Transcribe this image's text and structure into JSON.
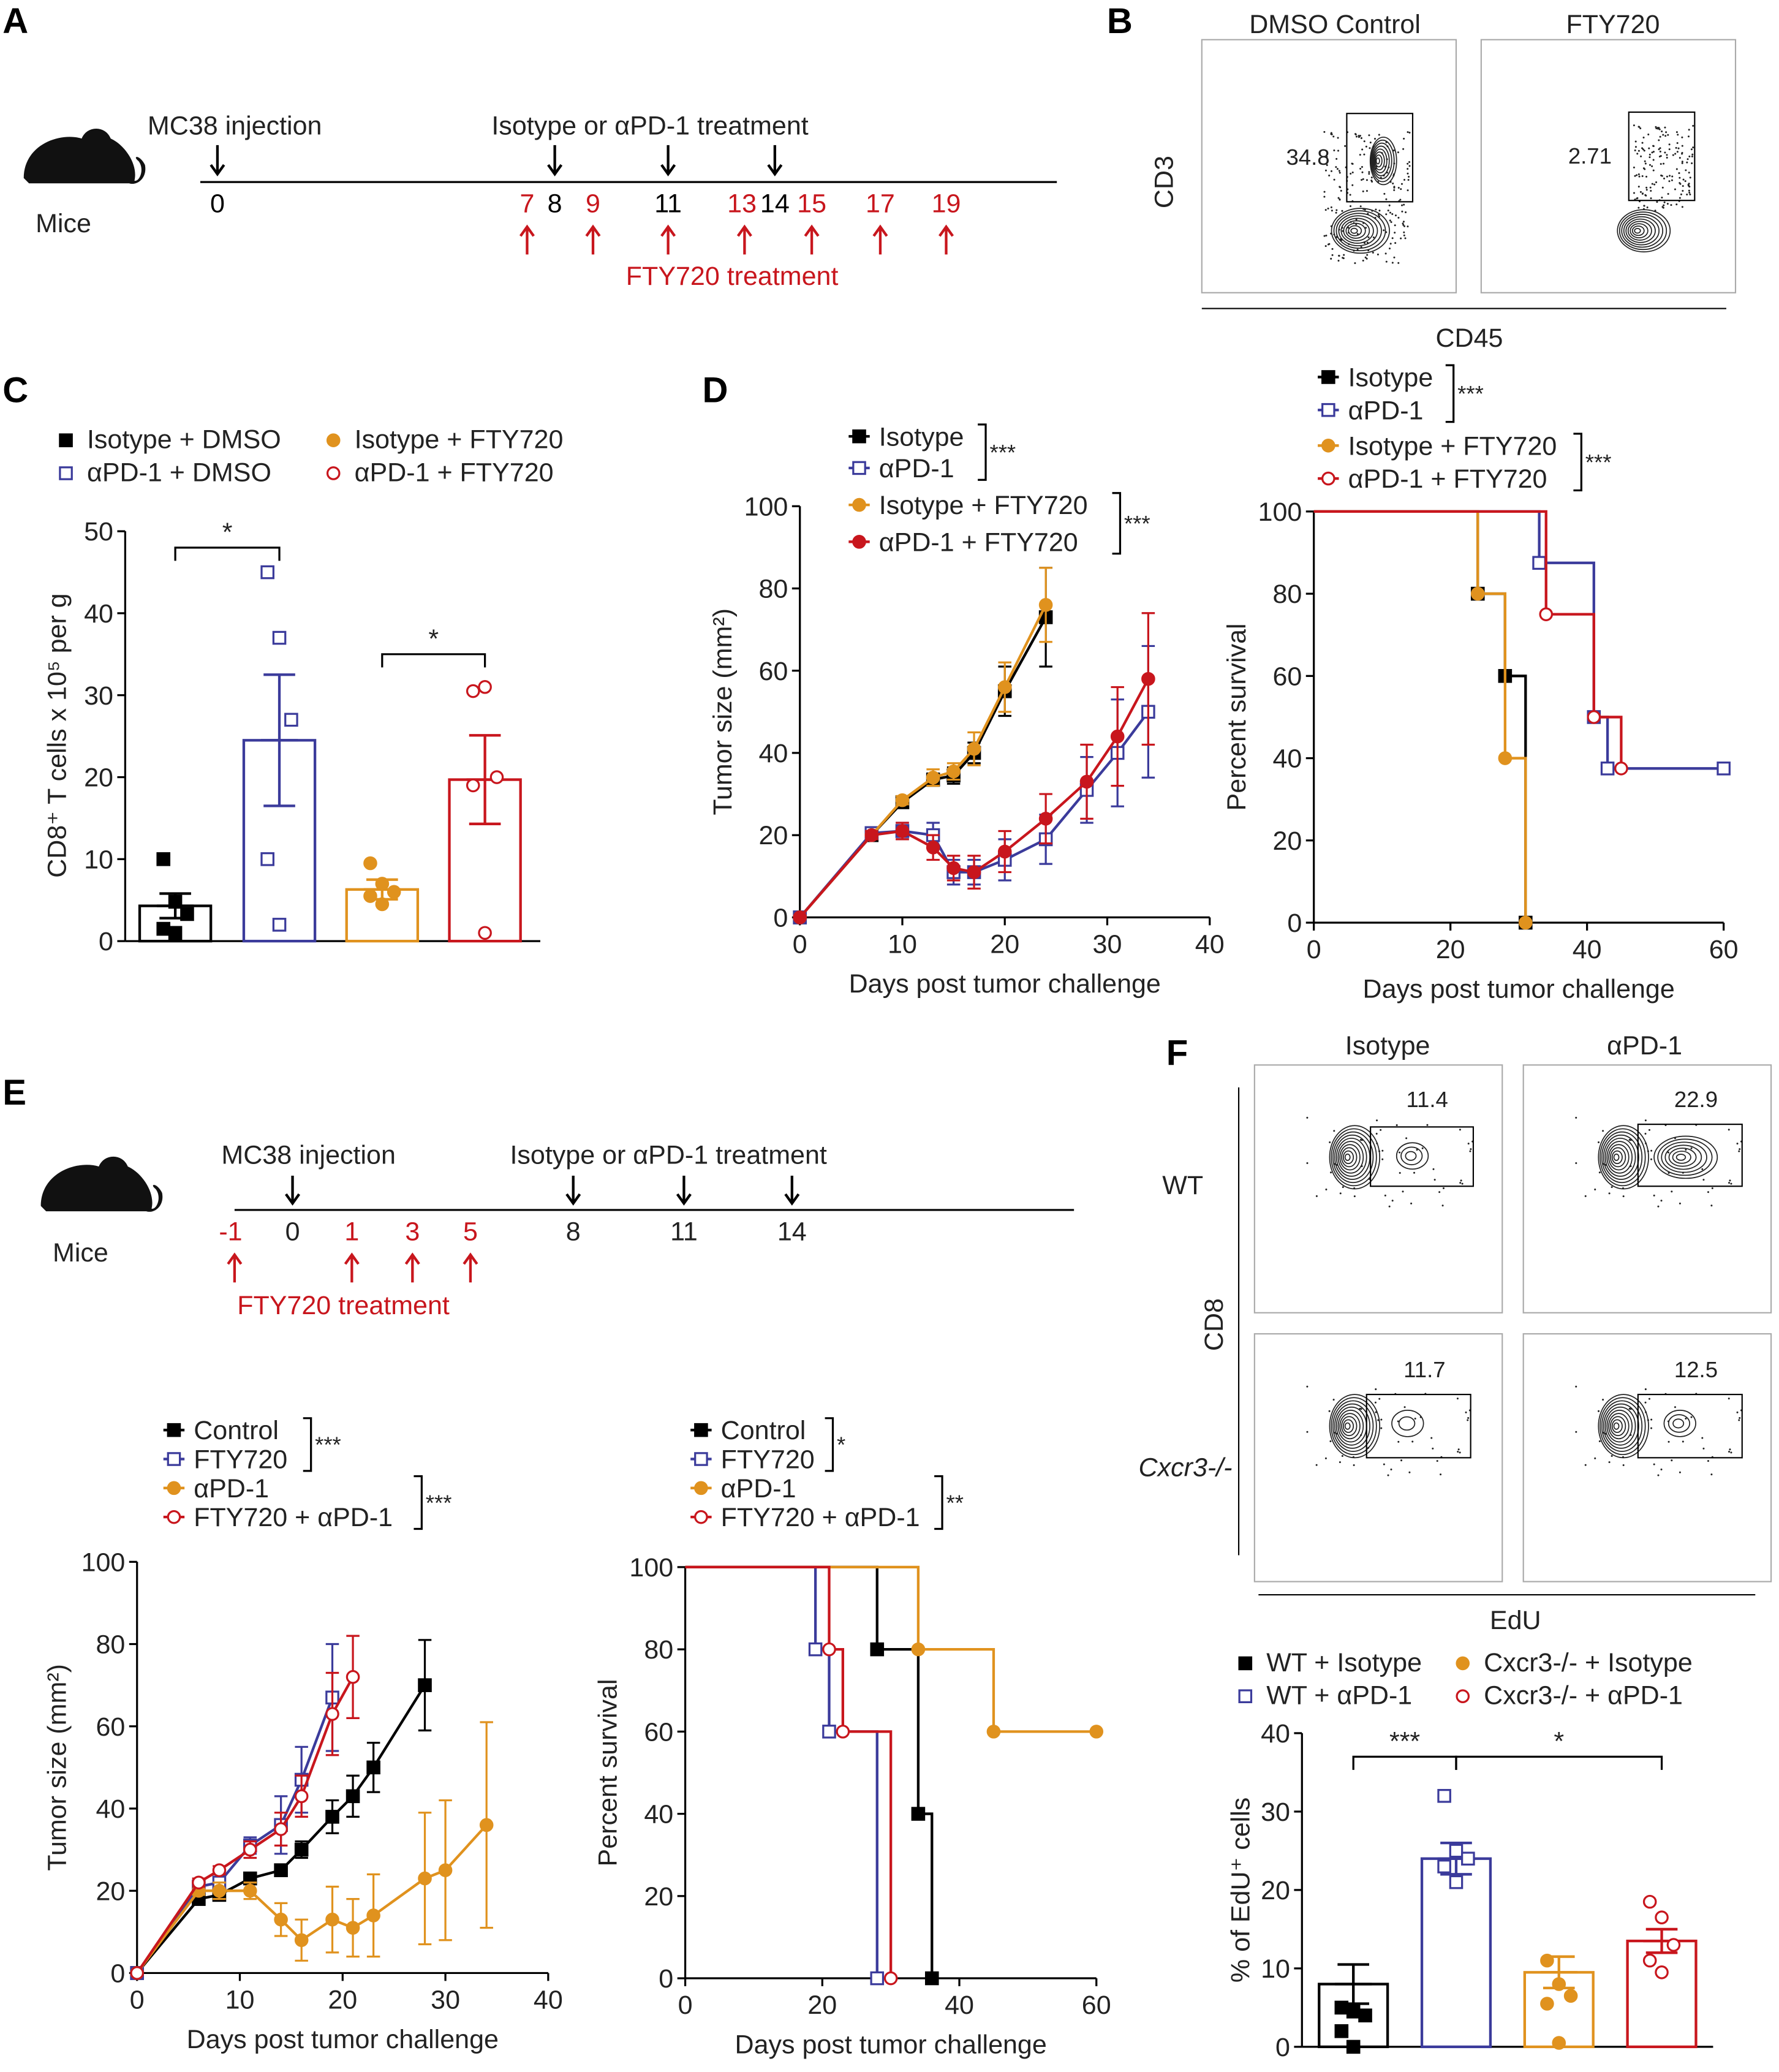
{
  "panels": {
    "a": "A",
    "b": "B",
    "c": "C",
    "d": "D",
    "e": "E",
    "f": "F"
  },
  "timeline_a": {
    "mice_label": "Mice",
    "injection_label": "MC38 injection",
    "treatment_label": "Isotype or αPD-1 treatment",
    "fty_label": "FTY720 treatment",
    "days": [
      {
        "label": "0",
        "color": "#000"
      },
      {
        "label": "7",
        "color": "#c8161d"
      },
      {
        "label": "8",
        "color": "#000"
      },
      {
        "label": "9",
        "color": "#c8161d"
      },
      {
        "label": "11",
        "color": "#000"
      },
      {
        "label": "13",
        "color": "#c8161d"
      },
      {
        "label": "14",
        "color": "#000"
      },
      {
        "label": "15",
        "color": "#c8161d"
      },
      {
        "label": "17",
        "color": "#c8161d"
      },
      {
        "label": "19",
        "color": "#c8161d"
      }
    ]
  },
  "timeline_e": {
    "mice_label": "Mice",
    "injection_label": "MC38 injection",
    "treatment_label": "Isotype or αPD-1 treatment",
    "fty_label": "FTY720 treatment",
    "days": [
      {
        "label": "-1"
      },
      {
        "label": "0"
      },
      {
        "label": "1"
      },
      {
        "label": "3"
      },
      {
        "label": "5"
      },
      {
        "label": "8"
      },
      {
        "label": "11"
      },
      {
        "label": "14"
      }
    ]
  },
  "flow_b": {
    "titles": [
      "DMSO Control",
      "FTY720"
    ],
    "y_axis": "CD3",
    "x_axis": "CD45",
    "gate_values": [
      "34.8",
      "2.71"
    ]
  },
  "flow_f": {
    "col_titles": [
      "Isotype",
      "αPD-1"
    ],
    "row_labels": [
      "WT",
      "Cxcr3-/-"
    ],
    "y_axis": "CD8",
    "x_axis": "EdU",
    "gate_values": [
      "11.4",
      "22.9",
      "11.7",
      "12.5"
    ]
  },
  "colors": {
    "black": "#000000",
    "blue": "#3b3b9b",
    "orange": "#e0921e",
    "red": "#c8161d"
  },
  "chart_data": [
    {
      "id": "C",
      "type": "bar",
      "title": "",
      "xlabel": "",
      "ylabel": "CD8⁺ T cells x 10⁵ per g",
      "ylim": [
        0,
        50
      ],
      "yticks": [
        0,
        10,
        20,
        30,
        40,
        50
      ],
      "categories": [
        "Isotype + DMSO",
        "αPD-1 + DMSO",
        "Isotype + FTY720",
        "αPD-1 + FTY720"
      ],
      "values": [
        4.3,
        24.5,
        6.3,
        19.7
      ],
      "sem": [
        1.5,
        8,
        1.2,
        5.4
      ],
      "points": [
        [
          10,
          4.8,
          3.3,
          1.5,
          1
        ],
        [
          45,
          37,
          27,
          10,
          2
        ],
        [
          9.5,
          7,
          6,
          5.5,
          4.5
        ],
        [
          30.5,
          31,
          20,
          19,
          1
        ]
      ],
      "markers": [
        "square-filled",
        "square-open",
        "circle-filled",
        "circle-open"
      ],
      "colors": [
        "#000000",
        "#3b3b9b",
        "#e0921e",
        "#c8161d"
      ],
      "significance": [
        {
          "from": 0,
          "to": 1,
          "label": "*",
          "y": 48
        },
        {
          "from": 2,
          "to": 3,
          "label": "*",
          "y": 35
        }
      ]
    },
    {
      "id": "D-growth",
      "type": "line",
      "xlabel": "Days post tumor challenge",
      "ylabel": "Tumor size (mm²)",
      "xlim": [
        0,
        40
      ],
      "ylim": [
        0,
        100
      ],
      "xticks": [
        0,
        10,
        20,
        30,
        40
      ],
      "yticks": [
        0,
        20,
        40,
        60,
        80,
        100
      ],
      "series": [
        {
          "name": "Isotype",
          "color": "#000000",
          "marker": "square-filled",
          "x": [
            0,
            7,
            10,
            13,
            15,
            17,
            20,
            24
          ],
          "y": [
            0,
            20,
            28,
            33.5,
            34.5,
            40,
            55,
            73
          ],
          "err": [
            0,
            1,
            1,
            1.5,
            2,
            2.5,
            6,
            12
          ]
        },
        {
          "name": "αPD-1",
          "color": "#3b3b9b",
          "marker": "square-open",
          "x": [
            0,
            7,
            10,
            13,
            15,
            17,
            20,
            24,
            28,
            31,
            34
          ],
          "y": [
            0,
            20.5,
            21,
            20,
            11,
            11,
            14,
            19,
            31,
            40,
            50
          ],
          "err": [
            0,
            1,
            2,
            3,
            3,
            3,
            5,
            6,
            8,
            13,
            16
          ]
        },
        {
          "name": "Isotype + FTY720",
          "color": "#e0921e",
          "marker": "circle-filled",
          "x": [
            0,
            7,
            10,
            13,
            15,
            17,
            20,
            24
          ],
          "y": [
            0,
            20,
            28.5,
            34,
            35.5,
            41,
            56,
            76
          ],
          "err": [
            0,
            1,
            1,
            2,
            2,
            4,
            6,
            9
          ]
        },
        {
          "name": "αPD-1 + FTY720",
          "color": "#c8161d",
          "marker": "circle-filled",
          "x": [
            0,
            7,
            10,
            13,
            15,
            17,
            20,
            24,
            28,
            31,
            34
          ],
          "y": [
            0,
            20,
            21,
            17,
            12,
            11,
            16,
            24,
            33,
            44,
            58
          ],
          "err": [
            0,
            1,
            2,
            3,
            3,
            4,
            5,
            6,
            9,
            12,
            16
          ]
        }
      ],
      "brackets": [
        {
          "items": [
            0,
            1
          ],
          "label": "***"
        },
        {
          "items": [
            2,
            3
          ],
          "label": "***"
        }
      ]
    },
    {
      "id": "D-survival",
      "type": "line",
      "xlabel": "Days post tumor challenge",
      "ylabel": "Percent survival",
      "xlim": [
        0,
        60
      ],
      "ylim": [
        0,
        100
      ],
      "xticks": [
        0,
        20,
        40,
        60
      ],
      "yticks": [
        0,
        20,
        40,
        60,
        80,
        100
      ],
      "series": [
        {
          "name": "Isotype",
          "color": "#000000",
          "marker": "square-filled",
          "steps": [
            [
              24,
              80
            ],
            [
              28,
              60
            ],
            [
              31,
              0
            ]
          ],
          "end": 31
        },
        {
          "name": "αPD-1",
          "color": "#3b3b9b",
          "marker": "square-open",
          "steps": [
            [
              33,
              87.5
            ],
            [
              41,
              50
            ],
            [
              43,
              37.5
            ]
          ],
          "end": 60
        },
        {
          "name": "Isotype + FTY720",
          "color": "#e0921e",
          "marker": "circle-filled",
          "steps": [
            [
              24,
              80
            ],
            [
              28,
              40
            ],
            [
              31,
              0
            ]
          ],
          "end": 31
        },
        {
          "name": "αPD-1 + FTY720",
          "color": "#c8161d",
          "marker": "circle-open",
          "steps": [
            [
              34,
              75
            ],
            [
              41,
              50
            ],
            [
              45,
              37.5
            ]
          ],
          "end": 45
        }
      ],
      "brackets": [
        {
          "items": [
            0,
            1
          ],
          "label": "***"
        },
        {
          "items": [
            2,
            3
          ],
          "label": "***"
        }
      ]
    },
    {
      "id": "E-growth",
      "type": "line",
      "xlabel": "Days post tumor challenge",
      "ylabel": "Tumor size (mm²)",
      "xlim": [
        0,
        40
      ],
      "ylim": [
        0,
        100
      ],
      "xticks": [
        0,
        10,
        20,
        30,
        40
      ],
      "yticks": [
        0,
        20,
        40,
        60,
        80,
        100
      ],
      "series": [
        {
          "name": "Control",
          "color": "#000000",
          "marker": "square-filled",
          "x": [
            0,
            6,
            8,
            11,
            14,
            16,
            19,
            21,
            23,
            28
          ],
          "y": [
            0,
            18,
            19,
            23,
            25,
            30,
            38,
            43,
            50,
            70
          ],
          "err": [
            0,
            1,
            1,
            1,
            1,
            2,
            4,
            5,
            6,
            11
          ]
        },
        {
          "name": "FTY720",
          "color": "#3b3b9b",
          "marker": "square-open",
          "x": [
            0,
            6,
            8,
            11,
            14,
            16,
            19
          ],
          "y": [
            0,
            21,
            22,
            31,
            36,
            47,
            67
          ],
          "err": [
            0,
            1,
            1,
            2,
            7,
            8,
            13
          ]
        },
        {
          "name": "αPD-1",
          "color": "#e0921e",
          "marker": "circle-filled",
          "x": [
            0,
            6,
            8,
            11,
            14,
            16,
            19,
            21,
            23,
            28,
            30,
            34
          ],
          "y": [
            0,
            20,
            20,
            20,
            13,
            8,
            13,
            11,
            14,
            23,
            25,
            36
          ],
          "err": [
            0,
            1,
            2,
            2,
            4,
            5,
            8,
            7,
            10,
            16,
            17,
            25
          ]
        },
        {
          "name": "FTY720 + αPD-1",
          "color": "#c8161d",
          "marker": "circle-open",
          "x": [
            0,
            6,
            8,
            11,
            14,
            16,
            19,
            21
          ],
          "y": [
            0,
            22,
            25,
            30,
            35,
            43,
            63,
            72
          ],
          "err": [
            0,
            1,
            1,
            2,
            4,
            5,
            10,
            10
          ]
        }
      ],
      "brackets": [
        {
          "items": [
            0,
            1
          ],
          "label": "***"
        },
        {
          "items": [
            2,
            3
          ],
          "label": "***"
        }
      ]
    },
    {
      "id": "E-survival",
      "type": "line",
      "xlabel": "Days post tumor challenge",
      "ylabel": "Percent survival",
      "xlim": [
        0,
        60
      ],
      "ylim": [
        0,
        100
      ],
      "xticks": [
        0,
        20,
        40,
        60
      ],
      "yticks": [
        0,
        20,
        40,
        60,
        80,
        100
      ],
      "series": [
        {
          "name": "Control",
          "color": "#000000",
          "marker": "square-filled",
          "steps": [
            [
              28,
              80
            ],
            [
              34,
              40
            ],
            [
              36,
              0
            ]
          ],
          "end": 36
        },
        {
          "name": "FTY720",
          "color": "#3b3b9b",
          "marker": "square-open",
          "steps": [
            [
              19,
              80
            ],
            [
              21,
              60
            ],
            [
              28,
              0
            ]
          ],
          "end": 28
        },
        {
          "name": "αPD-1",
          "color": "#e0921e",
          "marker": "circle-filled",
          "steps": [
            [
              34,
              80
            ],
            [
              45,
              60
            ]
          ],
          "end": 60
        },
        {
          "name": "FTY720 + αPD-1",
          "color": "#c8161d",
          "marker": "circle-open",
          "steps": [
            [
              21,
              80
            ],
            [
              23,
              60
            ],
            [
              30,
              0
            ]
          ],
          "end": 30
        }
      ],
      "brackets": [
        {
          "items": [
            0,
            1
          ],
          "label": "*"
        },
        {
          "items": [
            2,
            3
          ],
          "label": "**"
        }
      ]
    },
    {
      "id": "F",
      "type": "bar",
      "xlabel": "",
      "ylabel": "% of EdU⁺ cells",
      "ylim": [
        0,
        40
      ],
      "yticks": [
        0,
        10,
        20,
        30,
        40
      ],
      "categories": [
        "WT + Isotype",
        "WT + αPD-1",
        "Cxcr3-/- + Isotype",
        "Cxcr3-/- + αPD-1"
      ],
      "values": [
        8,
        24,
        9.5,
        13.5
      ],
      "sem": [
        2.5,
        2,
        2,
        1.5
      ],
      "points": [
        [
          5,
          4.5,
          4,
          2,
          0
        ],
        [
          32,
          25,
          24,
          23,
          21
        ],
        [
          11,
          8,
          6.5,
          5.5,
          0.5
        ],
        [
          18.5,
          16.5,
          13,
          11,
          9.5
        ]
      ],
      "markers": [
        "square-filled",
        "square-open",
        "circle-filled",
        "circle-open"
      ],
      "colors": [
        "#000000",
        "#3b3b9b",
        "#e0921e",
        "#c8161d"
      ],
      "significance": [
        {
          "from": 0,
          "to": 1,
          "label": "***",
          "y": 37
        },
        {
          "from": 1,
          "to": 3,
          "label": "*",
          "y": 37
        }
      ]
    }
  ]
}
